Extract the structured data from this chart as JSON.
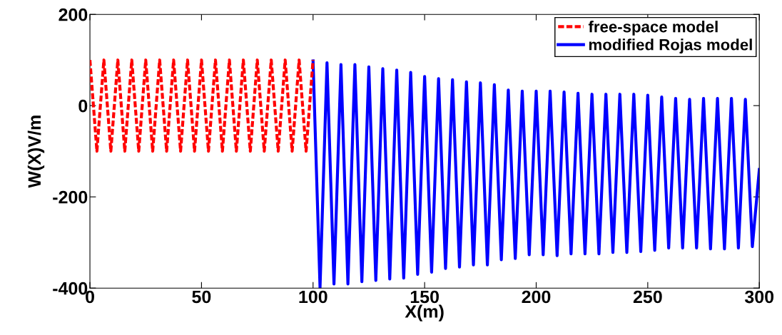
{
  "chart_data": {
    "type": "line",
    "xlabel": "X(m)",
    "ylabel": "W(X)V/m",
    "xlim": [
      0,
      300
    ],
    "ylim": [
      -400,
      200
    ],
    "xticks": [
      0,
      50,
      100,
      150,
      200,
      250,
      300
    ],
    "yticks": [
      -400,
      -200,
      0,
      200
    ],
    "legend": "top right",
    "series": [
      {
        "name": "free-space model",
        "color": "#ff0000",
        "line_style": "dashed",
        "x": [
          0,
          3.125,
          6.25,
          9.375,
          12.5,
          15.625,
          18.75,
          21.875,
          25,
          28.125,
          31.25,
          34.375,
          37.5,
          40.625,
          43.75,
          46.875,
          50,
          53.125,
          56.25,
          59.375,
          62.5,
          65.625,
          68.75,
          71.875,
          75,
          78.125,
          81.25,
          84.375,
          87.5,
          90.625,
          93.75,
          96.875,
          100
        ],
        "values": [
          100,
          -100,
          100,
          -100,
          100,
          -100,
          100,
          -100,
          100,
          -100,
          100,
          -100,
          100,
          -100,
          100,
          -100,
          100,
          -100,
          100,
          -100,
          100,
          -100,
          100,
          -100,
          100,
          -100,
          100,
          -100,
          100,
          -100,
          100,
          -100,
          100
        ]
      },
      {
        "name": "modified Rojas model",
        "color": "#0000ff",
        "line_style": "solid",
        "x": [
          100,
          103.125,
          106.25,
          109.375,
          112.5,
          115.625,
          118.75,
          121.875,
          125,
          128.125,
          131.25,
          134.375,
          137.5,
          140.625,
          143.75,
          146.875,
          150,
          153.125,
          156.25,
          159.375,
          162.5,
          165.625,
          168.75,
          171.875,
          175,
          178.125,
          181.25,
          184.375,
          187.5,
          190.625,
          193.75,
          196.875,
          200,
          203.125,
          206.25,
          209.375,
          212.5,
          215.625,
          218.75,
          221.875,
          225,
          228.125,
          231.25,
          234.375,
          237.5,
          240.625,
          243.75,
          246.875,
          250,
          253.125,
          256.25,
          259.375,
          262.5,
          265.625,
          268.75,
          271.875,
          275,
          278.125,
          281.25,
          284.375,
          287.5,
          290.625,
          293.75,
          296.875,
          300
        ],
        "values": [
          98,
          -399,
          94,
          -391,
          90,
          -391,
          90,
          -386,
          85,
          -383,
          81,
          -380,
          78,
          -378,
          73,
          -370,
          64,
          -365,
          59,
          -357,
          57,
          -354,
          52,
          -349,
          50,
          -349,
          46,
          -338,
          34,
          -335,
          32,
          -327,
          32,
          -327,
          32,
          -329,
          30,
          -325,
          27,
          -325,
          25,
          -325,
          25,
          -322,
          25,
          -322,
          25,
          -320,
          23,
          -317,
          19,
          -312,
          16,
          -312,
          14,
          -312,
          16,
          -314,
          16,
          -314,
          16,
          -312,
          14,
          -309,
          -140
        ]
      }
    ]
  }
}
